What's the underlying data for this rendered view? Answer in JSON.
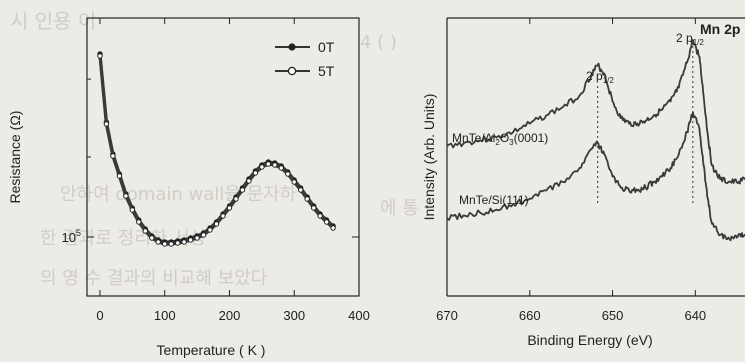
{
  "chart_data": [
    {
      "type": "scatter",
      "title": "",
      "xlabel": "Temperature ( K )",
      "ylabel": "Resistance (Ω)",
      "xlim": [
        -20,
        400
      ],
      "x_ticks": [
        "0",
        "100",
        "200",
        "300",
        "400"
      ],
      "y_ticks": [
        "10^5"
      ],
      "y_scale": "log (relative)",
      "legend": {
        "placement": "top-right",
        "entries": [
          "0T",
          "5T"
        ]
      },
      "series": [
        {
          "name": "0T",
          "marker": "filled-circle",
          "x": [
            0,
            10,
            20,
            30,
            40,
            50,
            60,
            70,
            80,
            90,
            100,
            110,
            120,
            130,
            140,
            150,
            160,
            170,
            180,
            190,
            200,
            210,
            220,
            230,
            240,
            250,
            260,
            270,
            280,
            290,
            300,
            310,
            320,
            330,
            340,
            350,
            360
          ],
          "y": [
            1.0,
            0.66,
            0.5,
            0.4,
            0.3,
            0.23,
            0.17,
            0.125,
            0.09,
            0.07,
            0.06,
            0.06,
            0.065,
            0.07,
            0.08,
            0.09,
            0.105,
            0.13,
            0.16,
            0.2,
            0.24,
            0.285,
            0.33,
            0.375,
            0.415,
            0.445,
            0.46,
            0.455,
            0.44,
            0.41,
            0.37,
            0.33,
            0.285,
            0.24,
            0.2,
            0.17,
            0.14
          ]
        },
        {
          "name": "5T",
          "marker": "open-circle",
          "x": [
            0,
            10,
            20,
            30,
            40,
            50,
            60,
            70,
            80,
            90,
            100,
            110,
            120,
            130,
            140,
            150,
            160,
            170,
            180,
            190,
            200,
            210,
            220,
            230,
            240,
            250,
            260,
            270,
            280,
            290,
            300,
            310,
            320,
            330,
            340,
            350,
            360
          ],
          "y": [
            0.99,
            0.65,
            0.49,
            0.39,
            0.29,
            0.22,
            0.16,
            0.115,
            0.08,
            0.06,
            0.05,
            0.05,
            0.055,
            0.06,
            0.07,
            0.08,
            0.095,
            0.12,
            0.15,
            0.19,
            0.23,
            0.275,
            0.32,
            0.365,
            0.405,
            0.435,
            0.45,
            0.445,
            0.43,
            0.4,
            0.36,
            0.32,
            0.275,
            0.23,
            0.19,
            0.16,
            0.13
          ]
        }
      ]
    },
    {
      "type": "line",
      "title": "",
      "xlabel": "Binding Energy (eV)",
      "ylabel": "Intensity (Arb. Units)",
      "xlim": [
        670,
        634
      ],
      "x_ticks": [
        "670",
        "660",
        "650",
        "640"
      ],
      "annotations": {
        "peak_left_label": "2 p",
        "peak_left_sub": "1/2",
        "peak_right_label": "2 p",
        "peak_right_sub": "1/2",
        "corner_label": "Mn 2p",
        "peak_positions_eV": [
          651.8,
          640.3
        ]
      },
      "series": [
        {
          "label_parts": [
            "MnTe/Al",
            "2",
            "O",
            "3",
            "(0001)"
          ],
          "x": [
            670,
            668,
            666,
            664,
            662,
            660,
            658,
            656,
            654,
            652.5,
            651.8,
            651,
            650,
            649,
            648,
            647,
            646,
            645,
            644,
            643,
            642,
            641,
            640.3,
            639.5,
            639,
            638.5,
            638,
            637,
            636,
            635,
            634
          ],
          "y": [
            0.54,
            0.55,
            0.56,
            0.57,
            0.59,
            0.62,
            0.65,
            0.68,
            0.72,
            0.8,
            0.83,
            0.8,
            0.7,
            0.64,
            0.62,
            0.62,
            0.63,
            0.65,
            0.67,
            0.7,
            0.75,
            0.84,
            0.92,
            0.86,
            0.72,
            0.58,
            0.47,
            0.42,
            0.41,
            0.41,
            0.42
          ]
        },
        {
          "label_parts": [
            "MnTe/Si(111)"
          ],
          "x": [
            670,
            668,
            666,
            664,
            662,
            660,
            658,
            656,
            654,
            652.5,
            651.8,
            651,
            650,
            649,
            648,
            647,
            646,
            645,
            644,
            643,
            642,
            641,
            640.3,
            639.5,
            639,
            638.5,
            638,
            637,
            636,
            635,
            634
          ],
          "y": [
            0.28,
            0.29,
            0.3,
            0.31,
            0.33,
            0.35,
            0.38,
            0.41,
            0.46,
            0.53,
            0.55,
            0.51,
            0.43,
            0.39,
            0.38,
            0.38,
            0.39,
            0.41,
            0.43,
            0.46,
            0.51,
            0.59,
            0.66,
            0.6,
            0.47,
            0.35,
            0.26,
            0.22,
            0.21,
            0.21,
            0.22
          ]
        }
      ]
    }
  ]
}
